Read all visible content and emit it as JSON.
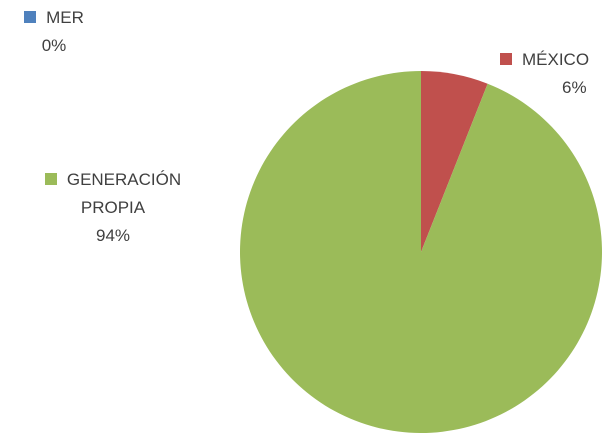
{
  "chart_data": {
    "type": "pie",
    "categories": [
      "MER",
      "MÉXICO",
      "GENERACIÓN PROPIA"
    ],
    "values": [
      0,
      6,
      94
    ],
    "value_labels": [
      "0%",
      "6%",
      "94%"
    ],
    "colors": [
      "#4f81bd",
      "#c0504d",
      "#9bbb59"
    ]
  }
}
